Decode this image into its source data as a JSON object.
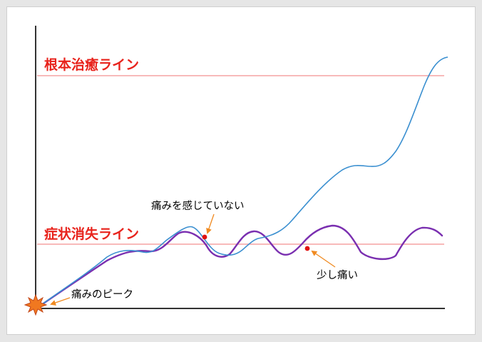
{
  "labels": {
    "cure_line": "根本治癒ライン",
    "symptom_line": "症状消失ライン"
  },
  "annotations": {
    "no_pain": "痛みを感じていない",
    "slight_pain": "少し痛い",
    "peak_pain": "痛みのピーク"
  },
  "colors": {
    "reference_line": "#f5a3a3",
    "label_red": "#e8231c",
    "recovery_curve": "#3a8fd0",
    "pain_curve": "#7a2fb0",
    "axis": "#333333",
    "marker": "#e01010",
    "arrow": "#f08a20",
    "burst": "#f07820"
  }
}
